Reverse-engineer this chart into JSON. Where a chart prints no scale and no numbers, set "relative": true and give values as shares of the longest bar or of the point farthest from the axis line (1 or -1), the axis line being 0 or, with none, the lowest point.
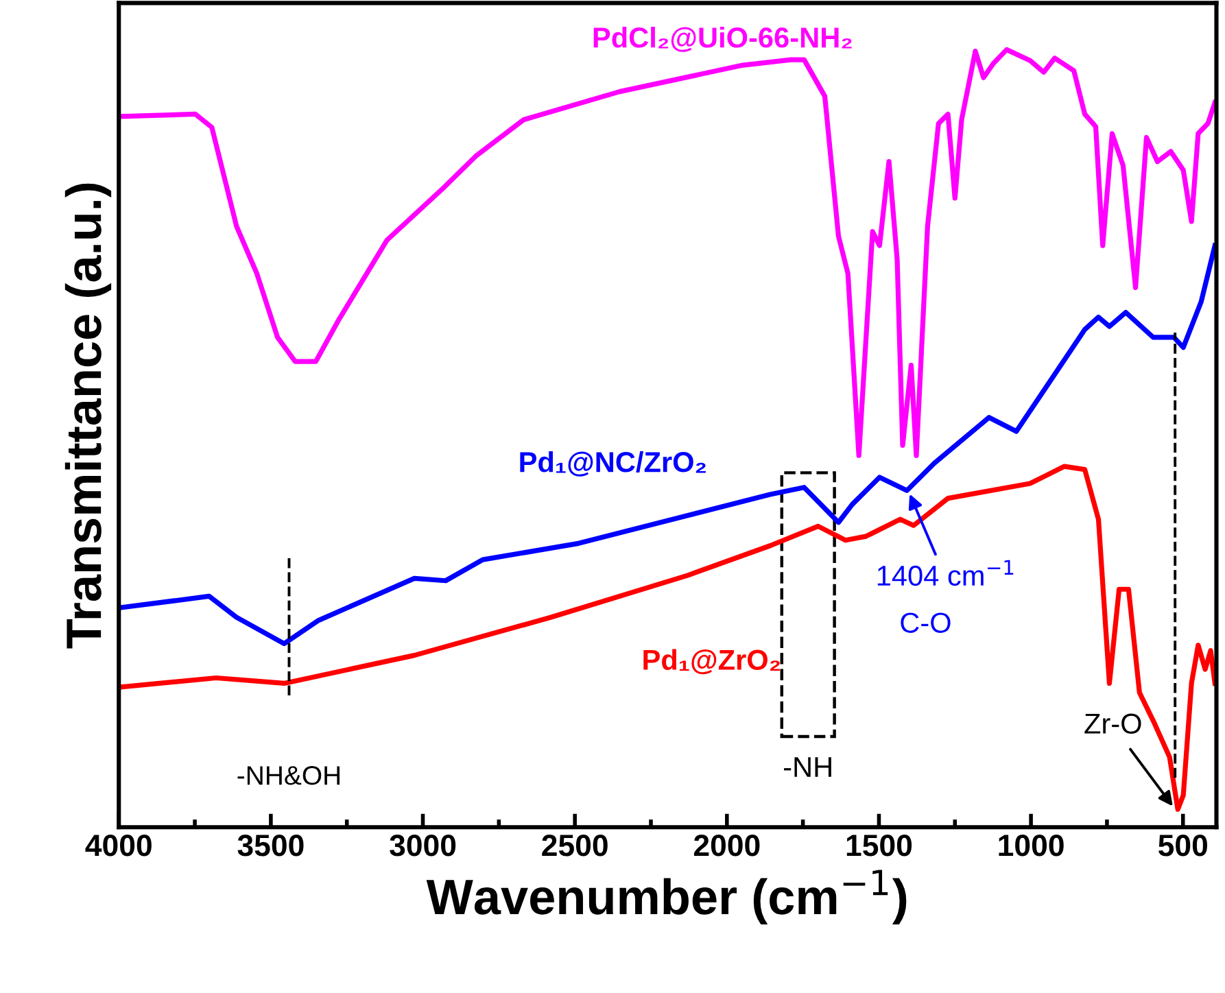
{
  "chart_data": {
    "type": "line",
    "relative": true,
    "xlabel": "Wavenumber (cm$^{−1}$)",
    "ylabel": "Transmittance (a.u.)",
    "xlim": [
      4000,
      390
    ],
    "xticks": [
      4000,
      3500,
      3000,
      2500,
      2000,
      1500,
      1000,
      500
    ],
    "legend": false,
    "grid": false,
    "marker": "none",
    "line_style": "solid",
    "series": [
      {
        "name": "PdCl₂@UiO-66-NH₂",
        "color": "#ff00ff",
        "x": [
          4000,
          3748,
          3694,
          3613,
          3546,
          3478,
          3420,
          3352,
          3276,
          3118,
          2938,
          2826,
          2668,
          2353,
          1948,
          1790,
          1746,
          1678,
          1633,
          1602,
          1566,
          1521,
          1498,
          1467,
          1440,
          1422,
          1394,
          1377,
          1340,
          1304,
          1273,
          1250,
          1228,
          1183,
          1156,
          1124,
          1080,
          1003,
          958,
          922,
          859,
          823,
          787,
          764,
          733,
          697,
          656,
          620,
          584,
          540,
          499,
          472,
          450,
          418,
          395
        ],
        "values": [
          0.914,
          0.917,
          0.9,
          0.773,
          0.712,
          0.63,
          0.599,
          0.599,
          0.653,
          0.755,
          0.82,
          0.863,
          0.91,
          0.946,
          0.98,
          0.987,
          0.987,
          0.94,
          0.76,
          0.712,
          0.478,
          0.766,
          0.748,
          0.856,
          0.73,
          0.491,
          0.594,
          0.478,
          0.773,
          0.905,
          0.917,
          0.809,
          0.91,
          0.998,
          0.964,
          0.982,
          1.0,
          0.986,
          0.971,
          0.989,
          0.973,
          0.917,
          0.901,
          0.748,
          0.892,
          0.851,
          0.694,
          0.887,
          0.856,
          0.869,
          0.845,
          0.779,
          0.892,
          0.905,
          0.932
        ]
      },
      {
        "name": "Pd₁@NC/ZrO₂",
        "color": "#0000ff",
        "x": [
          4000,
          3703,
          3613,
          3456,
          3343,
          3028,
          2925,
          2803,
          2488,
          1858,
          1746,
          1633,
          1588,
          1498,
          1408,
          1318,
          1138,
          1048,
          823,
          778,
          742,
          688,
          598,
          530,
          499,
          440,
          395
        ],
        "values": [
          0.282,
          0.297,
          0.27,
          0.236,
          0.266,
          0.32,
          0.317,
          0.344,
          0.365,
          0.428,
          0.437,
          0.392,
          0.415,
          0.45,
          0.433,
          0.468,
          0.527,
          0.509,
          0.64,
          0.656,
          0.644,
          0.662,
          0.63,
          0.63,
          0.617,
          0.676,
          0.748
        ]
      },
      {
        "name": "Pd₁@ZrO₂",
        "color": "#ff0000",
        "x": [
          4000,
          3680,
          3456,
          3028,
          2578,
          2128,
          1858,
          1700,
          1610,
          1543,
          1430,
          1386,
          1273,
          1003,
          890,
          823,
          778,
          742,
          710,
          679,
          643,
          598,
          544,
          517,
          499,
          472,
          450,
          427,
          409,
          395
        ],
        "values": [
          0.18,
          0.192,
          0.185,
          0.221,
          0.27,
          0.324,
          0.362,
          0.387,
          0.369,
          0.374,
          0.396,
          0.388,
          0.423,
          0.442,
          0.464,
          0.46,
          0.396,
          0.185,
          0.306,
          0.306,
          0.173,
          0.137,
          0.09,
          0.023,
          0.041,
          0.185,
          0.234,
          0.203,
          0.227,
          0.185
        ]
      }
    ],
    "ref_lines": [
      {
        "axis": "x",
        "value": 3440,
        "label": "-NH&OH",
        "color": "#000000",
        "line_style": "dashed"
      },
      {
        "axis": "x",
        "value": 526,
        "label": null,
        "color": "#000000",
        "line_style": "dashed"
      }
    ],
    "annotations": [
      {
        "text": "1404 cm$^{−1}$",
        "x": 1404,
        "y": 0.433
      },
      {
        "text": "Zr-O",
        "x": 526,
        "y": 0.023
      },
      "-NH",
      "C-O"
    ]
  }
}
